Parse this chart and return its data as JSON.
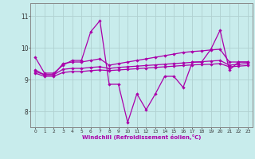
{
  "xlabel": "Windchill (Refroidissement éolien,°C)",
  "background_color": "#c8ecec",
  "grid_color": "#b0d0d0",
  "line_color": "#aa00aa",
  "x_ticks": [
    0,
    1,
    2,
    3,
    4,
    5,
    6,
    7,
    8,
    9,
    10,
    11,
    12,
    13,
    14,
    15,
    16,
    17,
    18,
    19,
    20,
    21,
    22,
    23
  ],
  "y_ticks": [
    8,
    9,
    10,
    11
  ],
  "ylim": [
    7.5,
    11.4
  ],
  "xlim": [
    -0.5,
    23.5
  ],
  "series1": [
    9.7,
    9.2,
    9.2,
    9.45,
    9.6,
    9.6,
    10.5,
    10.85,
    8.85,
    8.85,
    7.65,
    8.55,
    8.05,
    8.55,
    9.1,
    9.1,
    8.75,
    9.55,
    9.55,
    9.95,
    10.55,
    9.3,
    9.55,
    9.55
  ],
  "series2": [
    9.3,
    9.15,
    9.15,
    9.5,
    9.55,
    9.55,
    9.6,
    9.65,
    9.45,
    9.5,
    9.55,
    9.6,
    9.65,
    9.7,
    9.75,
    9.8,
    9.85,
    9.88,
    9.9,
    9.93,
    9.95,
    9.55,
    9.55,
    9.55
  ],
  "series3": [
    9.25,
    9.15,
    9.15,
    9.32,
    9.35,
    9.35,
    9.38,
    9.4,
    9.35,
    9.38,
    9.4,
    9.42,
    9.44,
    9.46,
    9.48,
    9.5,
    9.52,
    9.54,
    9.56,
    9.58,
    9.6,
    9.45,
    9.48,
    9.5
  ],
  "series4": [
    9.2,
    9.1,
    9.1,
    9.22,
    9.25,
    9.25,
    9.28,
    9.3,
    9.28,
    9.3,
    9.32,
    9.34,
    9.36,
    9.38,
    9.4,
    9.42,
    9.44,
    9.46,
    9.47,
    9.48,
    9.5,
    9.4,
    9.42,
    9.44
  ]
}
